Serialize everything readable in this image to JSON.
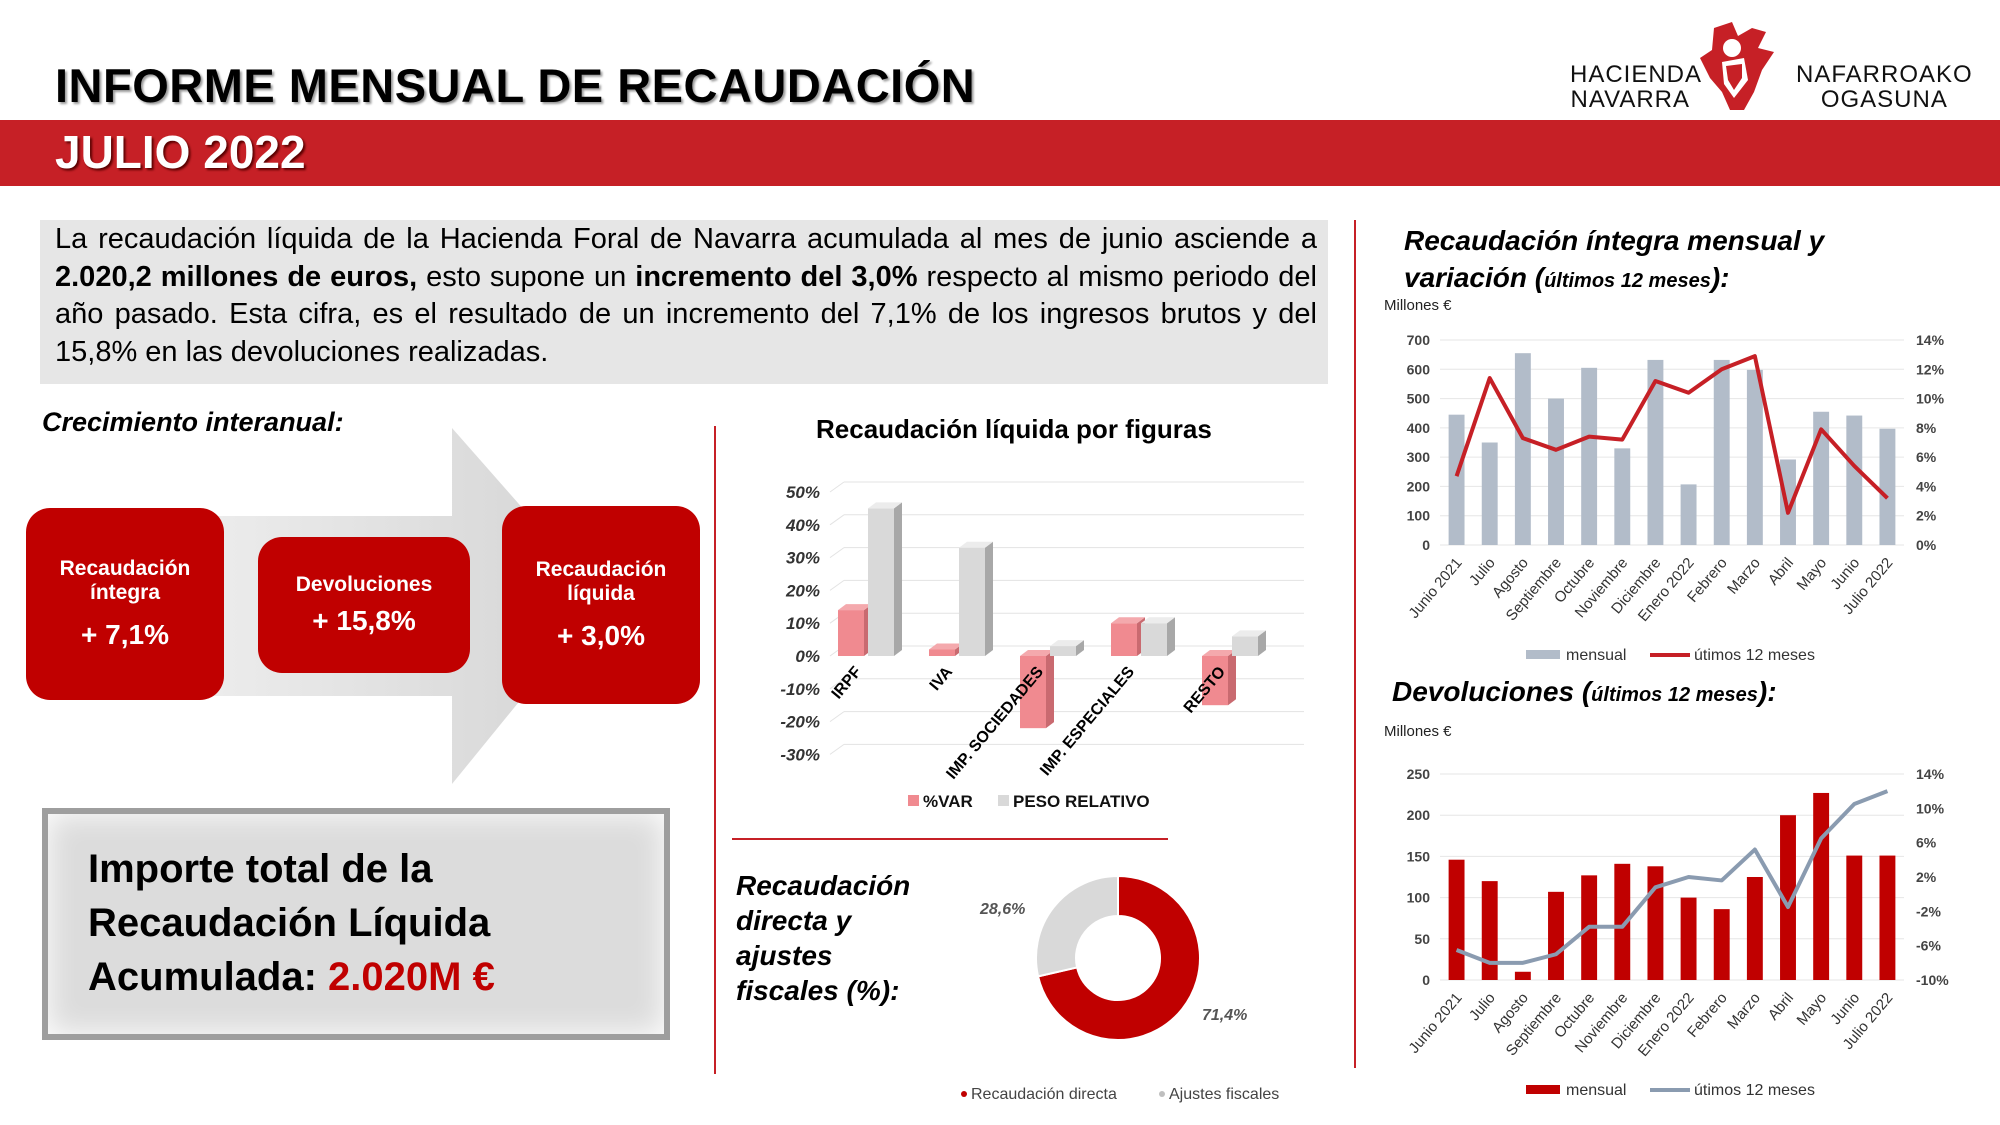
{
  "header": {
    "title": "INFORME MENSUAL DE RECAUDACIÓN",
    "subtitle": "JULIO 2022",
    "logo_left_line1": "HACIENDA",
    "logo_left_line2": "NAVARRA",
    "logo_right_line1": "NAFARROAKO",
    "logo_right_line2": "OGASUNA"
  },
  "colors": {
    "brand_red": "#c62026",
    "metric_red": "#c00000",
    "bar_grey": "#b2bcc9",
    "line_grey": "#8a9bb0",
    "var_pink": "#f08a90",
    "peso_grey": "#d9d9d9"
  },
  "summary": {
    "part1": "La recaudación líquida de la Hacienda Foral de Navarra acumulada al mes de junio asciende a ",
    "bold1": "2.020,2 millones de euros,",
    "part2": " esto supone un ",
    "bold2": "incremento del 3,0%",
    "part3": " respecto al mismo periodo del año pasado. Esta cifra, es el resultado de un incremento del 7,1% de los ingresos brutos y del 15,8% en las devoluciones realizadas."
  },
  "growth": {
    "title": "Crecimiento interanual:",
    "items": [
      {
        "label": "Recaudación íntegra",
        "value": "+ 7,1%"
      },
      {
        "label": "Devoluciones",
        "value": "+ 15,8%"
      },
      {
        "label": "Recaudación líquida",
        "value": "+ 3,0%"
      }
    ]
  },
  "total": {
    "line1": "Importe total de la",
    "line2": "Recaudación Líquida",
    "line3_prefix": "Acumulada: ",
    "line3_value": "2.020M €"
  },
  "directa": {
    "label_line1": "Recaudación",
    "label_line2": "directa y",
    "label_line3": "ajustes",
    "label_line4": "fiscales (%):"
  },
  "chart_data": [
    {
      "id": "figuras",
      "type": "bar",
      "title": "Recaudación líquida por figuras",
      "categories": [
        "IRPF",
        "IVA",
        "IMP. SOCIEDADES",
        "IMP. ESPECIALES",
        "RESTO"
      ],
      "series": [
        {
          "name": "%VAR",
          "values": [
            14,
            2,
            -22,
            10,
            -15
          ]
        },
        {
          "name": "PESO RELATIVO",
          "values": [
            45,
            33,
            3,
            10,
            6
          ]
        }
      ],
      "yticks": [
        "50%",
        "40%",
        "30%",
        "20%",
        "10%",
        "0%",
        "-10%",
        "-20%",
        "-30%"
      ],
      "ylim": [
        -30,
        50
      ],
      "legend_position": "bottom"
    },
    {
      "id": "integra",
      "type": "bar",
      "title_main": "Recaudación íntegra mensual y",
      "title_line2_prefix": "variación (",
      "title_line2_small": "últimos 12 meses",
      "title_line2_suffix": "):",
      "unit_label": "Millones €",
      "categories": [
        "Junio 2021",
        "Julio",
        "Agosto",
        "Septiembre",
        "Octubre",
        "Noviembre",
        "Diciembre",
        "Enero 2022",
        "Febrero",
        "Marzo",
        "Abril",
        "Mayo",
        "Junio",
        "Julio 2022"
      ],
      "series": [
        {
          "name": "mensual",
          "type": "bar",
          "axis": "left",
          "values": [
            445,
            350,
            655,
            500,
            605,
            330,
            632,
            207,
            632,
            598,
            292,
            455,
            442,
            397
          ]
        },
        {
          "name": "útimos 12 meses",
          "type": "line",
          "axis": "right",
          "values": [
            4.7,
            11.4,
            7.3,
            6.5,
            7.4,
            7.2,
            11.2,
            10.4,
            12.0,
            12.9,
            2.2,
            7.9,
            5.4,
            3.2
          ]
        }
      ],
      "left_ticks": [
        "700",
        "600",
        "500",
        "400",
        "300",
        "200",
        "100",
        "0"
      ],
      "right_ticks": [
        "14%",
        "12%",
        "10%",
        "8%",
        "6%",
        "4%",
        "2%",
        "0%"
      ],
      "ylim_left": [
        0,
        700
      ],
      "ylim_right": [
        0,
        14
      ],
      "legend_position": "bottom"
    },
    {
      "id": "devoluciones",
      "type": "bar",
      "title_prefix": "Devoluciones (",
      "title_small": "últimos 12 meses",
      "title_suffix": "):",
      "unit_label": "Millones €",
      "categories": [
        "Junio 2021",
        "Julio",
        "Agosto",
        "Septiembre",
        "Octubre",
        "Noviembre",
        "Diciembre",
        "Enero 2022",
        "Febrero",
        "Marzo",
        "Abril",
        "Mayo",
        "Junio",
        "Julio 2022"
      ],
      "series": [
        {
          "name": "mensual",
          "type": "bar",
          "axis": "left",
          "values": [
            146,
            120,
            10,
            107,
            127,
            141,
            138,
            100,
            86,
            125,
            200,
            227,
            151,
            151
          ]
        },
        {
          "name": "útimos 12 meses",
          "type": "line",
          "axis": "right",
          "values": [
            -6.5,
            -8.0,
            -8.0,
            -7.0,
            -3.8,
            -3.8,
            0.8,
            2.0,
            1.6,
            5.2,
            -1.5,
            6.5,
            10.5,
            12.0
          ]
        }
      ],
      "left_ticks": [
        "250",
        "200",
        "150",
        "100",
        "50",
        "0"
      ],
      "right_ticks": [
        "14%",
        "10%",
        "6%",
        "2%",
        "-2%",
        "-6%",
        "-10%"
      ],
      "ylim_left": [
        0,
        250
      ],
      "ylim_right": [
        -10,
        14
      ],
      "legend_position": "bottom"
    },
    {
      "id": "directa",
      "type": "pie",
      "categories": [
        "Recaudación directa",
        "Ajustes fiscales"
      ],
      "values": [
        71.4,
        28.6
      ],
      "labels": [
        "71,4%",
        "28,6%"
      ],
      "legend_position": "bottom"
    }
  ]
}
